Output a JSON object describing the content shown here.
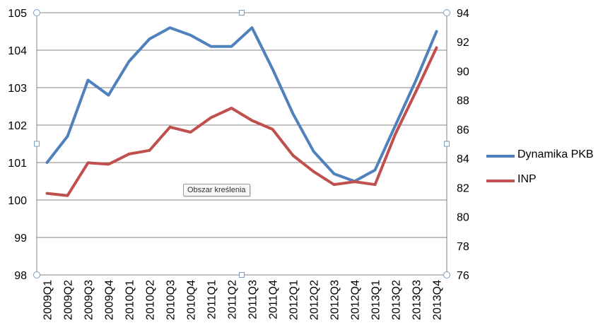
{
  "chart_data": {
    "type": "line",
    "categories": [
      "2009Q1",
      "2009Q2",
      "2009Q3",
      "2009Q4",
      "2010Q1",
      "2010Q2",
      "2010Q3",
      "2010Q4",
      "2011Q1",
      "2011Q2",
      "2011Q3",
      "2011Q4",
      "2012Q1",
      "2012Q2",
      "2012Q3",
      "2012Q4",
      "2013Q1",
      "2013Q2",
      "2013Q3",
      "2013Q4"
    ],
    "series": [
      {
        "name": "Dynamika PKB",
        "axis": "left",
        "color": "#4f81bd",
        "values": [
          101.0,
          101.7,
          103.2,
          102.8,
          103.7,
          104.3,
          104.6,
          104.4,
          104.1,
          104.1,
          104.6,
          103.5,
          102.3,
          101.3,
          100.7,
          100.5,
          100.8,
          102.0,
          103.2,
          104.5
        ]
      },
      {
        "name": "INP",
        "axis": "right",
        "color": "#c0504d",
        "values": [
          81.6,
          81.45,
          83.7,
          83.6,
          84.3,
          84.55,
          86.15,
          85.8,
          86.8,
          87.45,
          86.6,
          86.0,
          84.2,
          83.1,
          82.2,
          82.4,
          82.2,
          85.7,
          88.6,
          91.6
        ]
      }
    ],
    "y_left": {
      "min": 98,
      "max": 105,
      "ticks": [
        "98",
        "99",
        "100",
        "101",
        "102",
        "103",
        "104",
        "105"
      ]
    },
    "y_right": {
      "min": 76,
      "max": 94,
      "ticks": [
        "76",
        "78",
        "80",
        "82",
        "84",
        "86",
        "88",
        "90",
        "92",
        "94"
      ]
    },
    "grid": true,
    "legend_position": "right",
    "title": "",
    "xlabel": "",
    "ylabel": ""
  },
  "tooltip": "Obszar kreślenia"
}
